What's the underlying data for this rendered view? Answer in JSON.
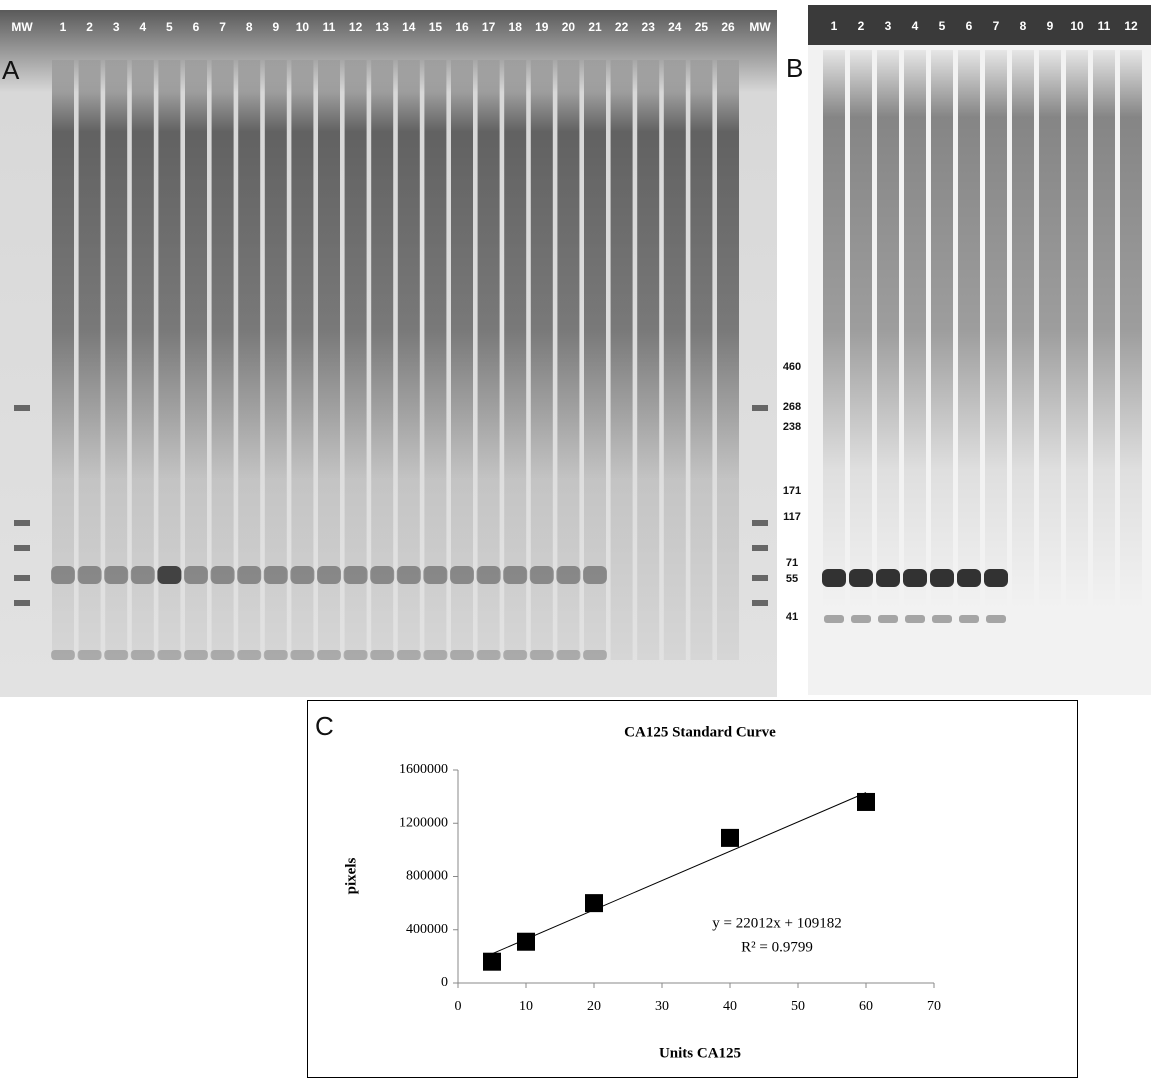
{
  "panel_a": {
    "label": "A",
    "lanes": [
      "MW",
      "1",
      "2",
      "3",
      "4",
      "5",
      "6",
      "7",
      "8",
      "9",
      "10",
      "11",
      "12",
      "13",
      "14",
      "15",
      "16",
      "17",
      "18",
      "19",
      "20",
      "21",
      "22",
      "23",
      "24",
      "25",
      "26",
      "MW"
    ]
  },
  "mw_markers": [
    "460",
    "268",
    "238",
    "171",
    "117",
    "71",
    "55",
    "41"
  ],
  "panel_b": {
    "label": "B",
    "lanes": [
      "1",
      "2",
      "3",
      "4",
      "5",
      "6",
      "7",
      "8",
      "9",
      "10",
      "11",
      "12"
    ]
  },
  "chart_data": {
    "type": "scatter",
    "panel_label": "C",
    "title": "CA125 Standard  Curve",
    "x_label": "Units  CA125",
    "y_label": "pixels",
    "x": [
      5,
      10,
      20,
      40,
      60
    ],
    "values": [
      160000,
      310000,
      600000,
      1090000,
      1360000
    ],
    "color": "#000000",
    "trendline": {
      "x": [
        5,
        60
      ],
      "values": [
        219242,
        1429902
      ]
    },
    "annotations": [
      "y = 22012x  + 109182",
      "R² = 0.9799"
    ],
    "xlim": [
      0,
      70
    ],
    "xticks": [
      0,
      10,
      20,
      30,
      40,
      50,
      60,
      70
    ],
    "ylim": [
      0,
      1600000
    ],
    "yticks": [
      0,
      400000,
      800000,
      1200000,
      1600000
    ]
  }
}
